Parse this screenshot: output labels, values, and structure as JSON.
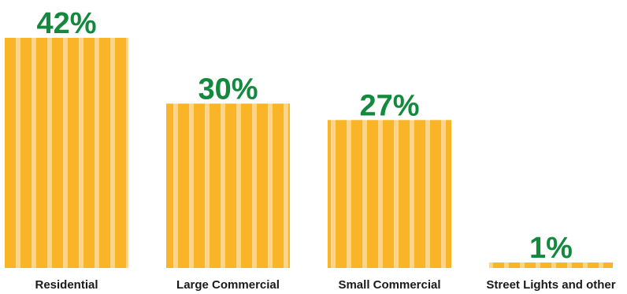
{
  "chart_data": {
    "type": "bar",
    "categories": [
      "Residential",
      "Large Commercial",
      "Small Commercial",
      "Street Lights and other"
    ],
    "values": [
      42,
      30,
      27,
      1
    ],
    "data_labels": [
      "42%",
      "30%",
      "27%",
      "1%"
    ],
    "title": "",
    "xlabel": "",
    "ylabel": "",
    "ylim": [
      0,
      42
    ],
    "grid": false,
    "legend": "none",
    "colors": {
      "bar": "#F9B428",
      "bar_stripe": "#FDD58A",
      "value_label": "#13893D",
      "category_label": "#1A1A1A"
    }
  }
}
